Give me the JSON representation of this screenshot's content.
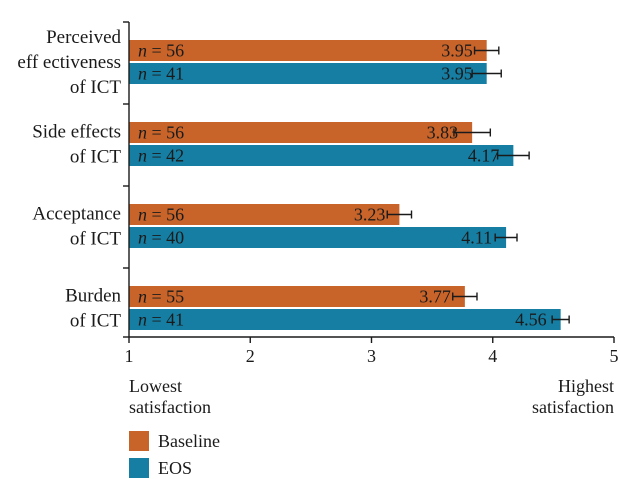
{
  "chart_data": {
    "type": "bar",
    "orientation": "horizontal",
    "categories": [
      [
        "Perceived",
        "eff ectiveness",
        "of ICT"
      ],
      [
        "Side effects",
        "of ICT"
      ],
      [
        "Acceptance",
        "of ICT"
      ],
      [
        "Burden",
        "of ICT"
      ]
    ],
    "series": [
      {
        "name": "Baseline",
        "color": "#c8642a",
        "values": [
          3.95,
          3.83,
          3.23,
          3.77
        ],
        "value_labels": [
          "3.95",
          "3.83",
          "3.23",
          "3.77"
        ],
        "error": [
          0.1,
          0.15,
          0.1,
          0.1
        ],
        "n_labels": [
          "= 56",
          "= 56",
          "= 56",
          "= 55"
        ]
      },
      {
        "name": "EOS",
        "color": "#157ea2",
        "values": [
          3.95,
          4.17,
          4.11,
          4.56
        ],
        "value_labels": [
          "3.95",
          "4.17",
          "4.11",
          "4.56"
        ],
        "error": [
          0.12,
          0.13,
          0.09,
          0.07
        ],
        "n_labels": [
          "= 41",
          "= 42",
          "= 40",
          "= 41"
        ]
      }
    ],
    "n_prefix": "n",
    "xlim": [
      1,
      5
    ],
    "xticks": [
      "1",
      "2",
      "3",
      "4",
      "5"
    ],
    "axis_note_left": [
      "Lowest",
      "satisfaction"
    ],
    "axis_note_right": [
      "Highest",
      "satisfaction"
    ],
    "grid": false,
    "legend_position": "bottom-left"
  }
}
